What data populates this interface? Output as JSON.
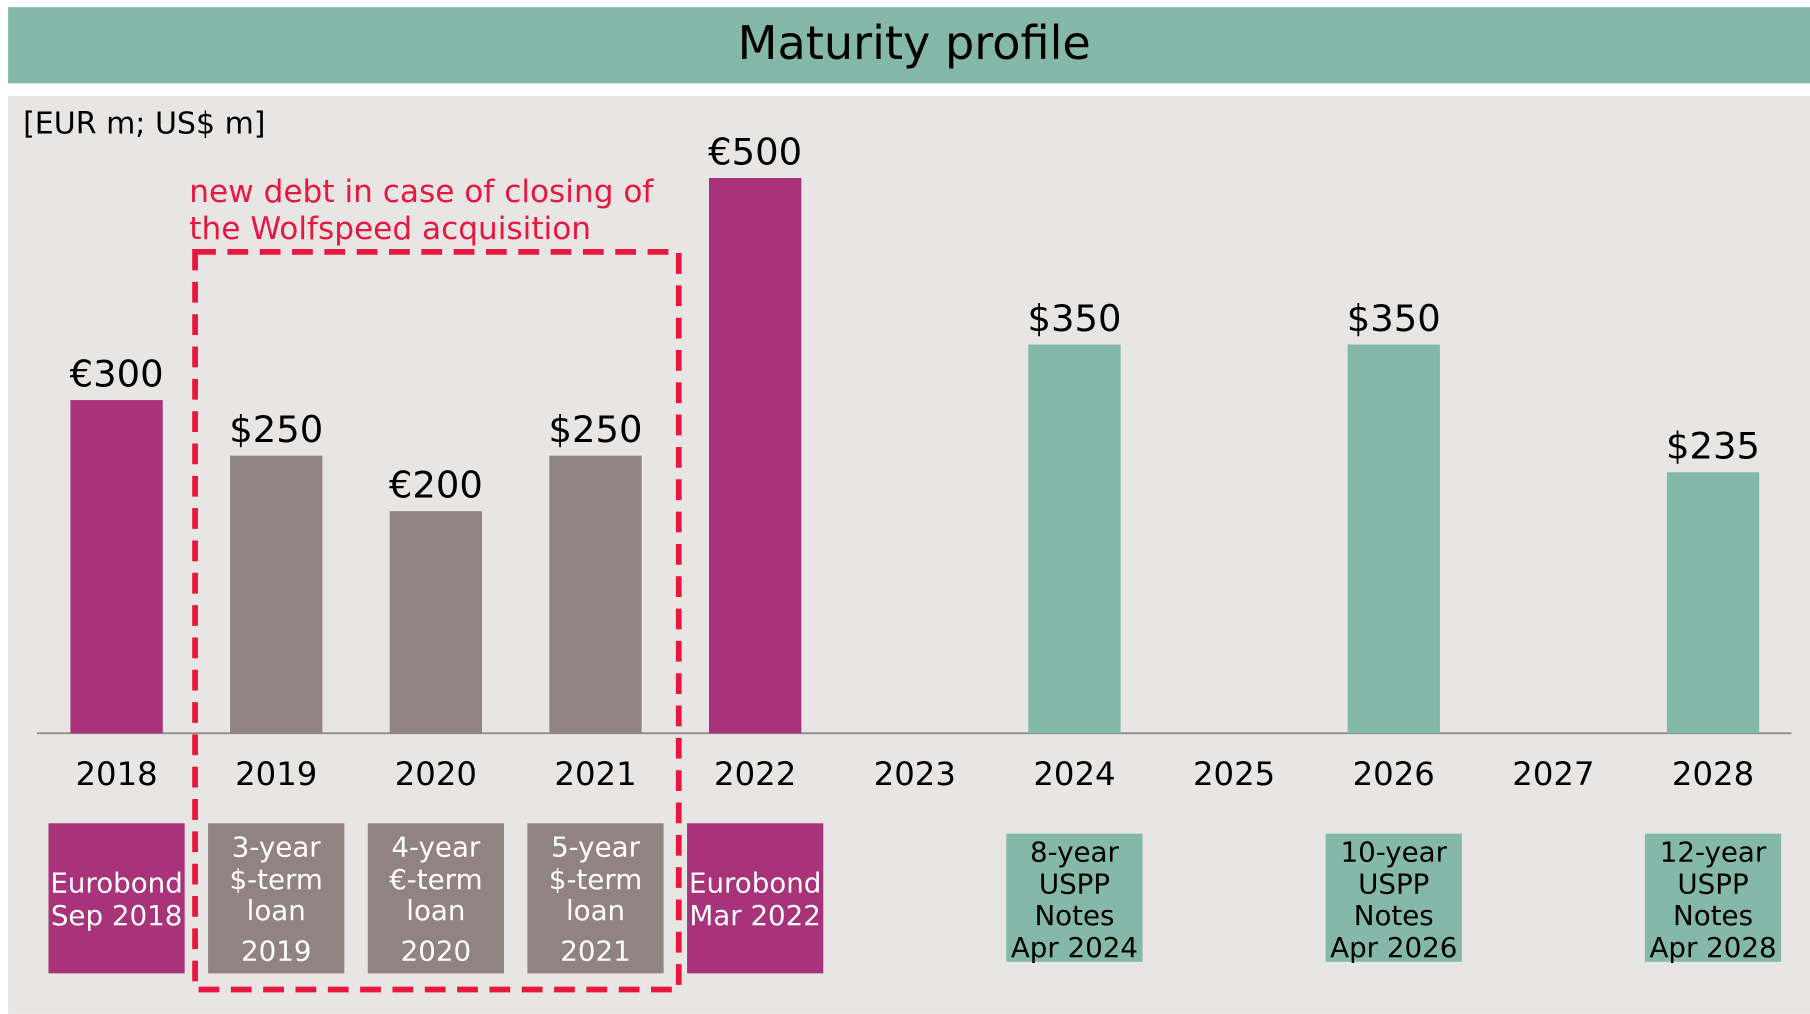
{
  "chart_data": {
    "type": "bar",
    "title": "Maturity profile",
    "subtitle": "[EUR m; US$ m]",
    "annotation": [
      "new debt in case of closing of",
      "the Wolfspeed acquisition"
    ],
    "categories": [
      "2018",
      "2019",
      "2020",
      "2021",
      "2022",
      "2023",
      "2024",
      "2025",
      "2026",
      "2027",
      "2028"
    ],
    "values": [
      300,
      250,
      200,
      250,
      500,
      null,
      350,
      null,
      350,
      null,
      235
    ],
    "value_labels": [
      "€300",
      "$250",
      "€200",
      "$250",
      "€500",
      null,
      "$350",
      null,
      "$350",
      null,
      "$235"
    ],
    "colors": [
      "#a8337a",
      "#928383",
      "#928383",
      "#928383",
      "#a8337a",
      null,
      "#84b8a8",
      null,
      "#84b8a8",
      null,
      "#84b8a8"
    ],
    "descriptions": [
      [
        "Eurobond",
        "Sep 2018"
      ],
      [
        "3-year",
        "$-term",
        "loan",
        "2019"
      ],
      [
        "4-year",
        "€-term",
        "loan",
        "2020"
      ],
      [
        "5-year",
        "$-term",
        "loan",
        "2021"
      ],
      [
        "Eurobond",
        "Mar 2022"
      ],
      null,
      [
        "8-year",
        "USPP",
        "Notes",
        "Apr 2024"
      ],
      null,
      [
        "10-year",
        "USPP",
        "Notes",
        "Apr 2026"
      ],
      null,
      [
        "12-year",
        "USPP",
        "Notes",
        "Apr 2028"
      ]
    ],
    "description_text_colors": [
      "#ffffff",
      "#ffffff",
      "#ffffff",
      "#ffffff",
      "#ffffff",
      null,
      "#000000",
      null,
      "#000000",
      null,
      "#000000"
    ],
    "ylim": [
      0,
      500
    ]
  }
}
